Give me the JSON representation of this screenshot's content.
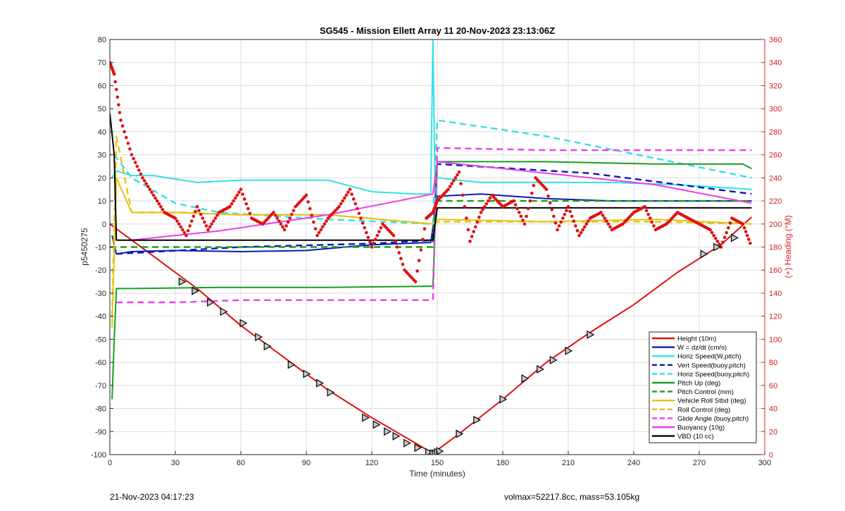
{
  "chart_data": {
    "type": "line",
    "title": "SG545 - Mission Ellett Array 11 20-Nov-2023 23:13:06Z",
    "xlabel": "Time (minutes)",
    "ylabel": "p5450275",
    "y2label": "(+) Heading (°M)",
    "xlim": [
      0,
      300
    ],
    "ylim": [
      -100,
      80
    ],
    "y2lim": [
      0,
      360
    ],
    "xticks": [
      0,
      30,
      60,
      90,
      120,
      150,
      180,
      210,
      240,
      270,
      300
    ],
    "yticks": [
      -100,
      -90,
      -80,
      -70,
      -60,
      -50,
      -40,
      -30,
      -20,
      -10,
      0,
      10,
      20,
      30,
      40,
      50,
      60,
      70,
      80
    ],
    "y2ticks": [
      0,
      20,
      40,
      60,
      80,
      100,
      120,
      140,
      160,
      180,
      200,
      220,
      240,
      260,
      280,
      300,
      320,
      340,
      360
    ],
    "grid": true,
    "legend_position": "bottom-right",
    "colors": {
      "red": "#e01010",
      "blue": "#0a1ab4",
      "cyan": "#33e0e6",
      "green": "#16a01e",
      "yellow": "#e6c214",
      "magenta": "#ee3cee",
      "black": "#000000",
      "right_axis": "#d42020"
    },
    "series": [
      {
        "name": "Height (10m)",
        "color": "red",
        "style": "solid",
        "x": [
          0,
          20,
          40,
          60,
          80,
          100,
          120,
          140,
          148,
          150,
          160,
          180,
          200,
          220,
          240,
          260,
          280,
          294
        ],
        "y": [
          0,
          -14,
          -28,
          -44,
          -58,
          -72,
          -84,
          -95,
          -99.5,
          -98,
          -91,
          -76,
          -60,
          -47,
          -35,
          -21,
          -9,
          3
        ]
      },
      {
        "name": "W = dz/dt (cm/s)",
        "color": "blue",
        "style": "solid",
        "x": [
          1,
          3,
          10,
          30,
          60,
          90,
          120,
          147,
          149,
          150,
          170,
          200,
          230,
          260,
          294
        ],
        "y": [
          -5,
          -13,
          -12,
          -11.5,
          -12,
          -11.5,
          -9,
          -8,
          5,
          12,
          13,
          11,
          10,
          10,
          10
        ]
      },
      {
        "name": "Horiz Speed(W,pitch)",
        "color": "cyan",
        "style": "solid",
        "x": [
          1,
          3,
          10,
          20,
          40,
          60,
          80,
          100,
          120,
          140,
          147,
          148,
          149,
          150,
          170,
          200,
          230,
          260,
          294
        ],
        "y": [
          20,
          23,
          21,
          21,
          18,
          19,
          19,
          19,
          14,
          13,
          13,
          80,
          14,
          20,
          18,
          18,
          18,
          17,
          15
        ]
      },
      {
        "name": "Vert Speed(buoy,pitch)",
        "color": "blue",
        "style": "dashed",
        "x": [
          3,
          60,
          120,
          148,
          150,
          220,
          294
        ],
        "y": [
          -13,
          -10,
          -8.5,
          -7,
          26,
          22,
          13
        ]
      },
      {
        "name": "Horiz Speed(buoy,pitch)",
        "color": "cyan",
        "style": "dashed",
        "x": [
          2,
          10,
          30,
          50,
          100,
          148,
          150,
          200,
          294
        ],
        "y": [
          30,
          20,
          9,
          5,
          2,
          0,
          45,
          38,
          20
        ]
      },
      {
        "name": "Pitch Up (deg)",
        "color": "green",
        "style": "solid",
        "x": [
          1,
          2,
          3,
          10,
          50,
          100,
          147,
          148,
          150,
          200,
          250,
          290,
          294
        ],
        "y": [
          -76,
          -50,
          -28,
          -28,
          -27.5,
          -27.5,
          -27,
          -27,
          27,
          27,
          26,
          26,
          24
        ]
      },
      {
        "name": "Pitch Control (mm)",
        "color": "green",
        "style": "dashed",
        "x": [
          0,
          148,
          149,
          294
        ],
        "y": [
          -10,
          -10,
          10,
          10
        ]
      },
      {
        "name": "Vehicle Roll Stbd (deg)",
        "color": "yellow",
        "style": "solid",
        "x": [
          1,
          3,
          10,
          30,
          60,
          100,
          148,
          150,
          200,
          250,
          294
        ],
        "y": [
          -45,
          20,
          5,
          5,
          4,
          4,
          0,
          2,
          1,
          2,
          0
        ]
      },
      {
        "name": "Roll Control (deg)",
        "color": "yellow",
        "style": "dashed",
        "x": [
          1,
          3,
          10,
          30,
          60,
          100,
          148,
          150,
          200,
          250,
          294
        ],
        "y": [
          -40,
          38,
          5,
          5,
          4,
          4,
          0,
          1,
          1,
          1,
          0
        ]
      },
      {
        "name": "Glide Angle (buoy,pitch)",
        "color": "magenta",
        "style": "dashed",
        "x": [
          3,
          30,
          60,
          100,
          148,
          150,
          200,
          250,
          294
        ],
        "y": [
          -34,
          -34,
          -33,
          -33,
          -33,
          33,
          32,
          32,
          32
        ]
      },
      {
        "name": "Buoyancy (10g)",
        "color": "magenta",
        "style": "solid",
        "x": [
          10,
          50,
          100,
          148,
          150,
          200,
          250,
          294
        ],
        "y": [
          -7,
          -3,
          4,
          13,
          27,
          22,
          17,
          9
        ]
      },
      {
        "name": "VBD (10 cc)",
        "color": "black",
        "style": "solid",
        "x": [
          0,
          2,
          3,
          148,
          150,
          294
        ],
        "y": [
          48,
          30,
          -7,
          -7,
          7,
          7
        ]
      },
      {
        "name": "(+) Heading (°M)",
        "axis": "right",
        "color": "red",
        "style": "dotted",
        "x": [
          0,
          2,
          5,
          10,
          15,
          20,
          25,
          30,
          35,
          40,
          45,
          50,
          55,
          60,
          65,
          70,
          75,
          80,
          85,
          90,
          95,
          100,
          105,
          110,
          115,
          120,
          125,
          130,
          135,
          140,
          145,
          148,
          150,
          155,
          160,
          165,
          170,
          175,
          180,
          185,
          190,
          195,
          200,
          205,
          210,
          215,
          220,
          225,
          230,
          235,
          240,
          245,
          250,
          255,
          260,
          265,
          270,
          275,
          280,
          285,
          290,
          294
        ],
        "y": [
          340,
          330,
          290,
          260,
          240,
          225,
          210,
          205,
          190,
          215,
          195,
          210,
          215,
          230,
          205,
          200,
          210,
          195,
          215,
          225,
          190,
          205,
          215,
          230,
          205,
          180,
          200,
          190,
          160,
          150,
          205,
          210,
          220,
          230,
          245,
          185,
          210,
          225,
          215,
          220,
          200,
          240,
          230,
          195,
          215,
          190,
          205,
          210,
          195,
          200,
          210,
          215,
          195,
          200,
          210,
          205,
          200,
          195,
          180,
          205,
          200,
          180
        ]
      }
    ],
    "markers": {
      "series": "Height (10m)",
      "shape": "triangle",
      "x": [
        33,
        39,
        46,
        52,
        61,
        68,
        72,
        83,
        90,
        96,
        101,
        117,
        122,
        127,
        131,
        136,
        141,
        146,
        148,
        149,
        150,
        151,
        160,
        168,
        180,
        190,
        197,
        203,
        210,
        220,
        272,
        278,
        286
      ],
      "y": [
        -25,
        -29,
        -34,
        -38,
        -43,
        -49,
        -53,
        -61,
        -65,
        -69,
        -73,
        -84,
        -87,
        -90,
        -92,
        -95,
        -97,
        -99,
        -99.5,
        -99.5,
        -99,
        -98.5,
        -91,
        -85,
        -76,
        -67,
        -63,
        -59,
        -55,
        -48,
        -13,
        -10,
        -6
      ]
    }
  },
  "footer": {
    "left": "21-Nov-2023 04:17:23",
    "right": "volmax=52217.8cc, mass=53.105kg"
  }
}
